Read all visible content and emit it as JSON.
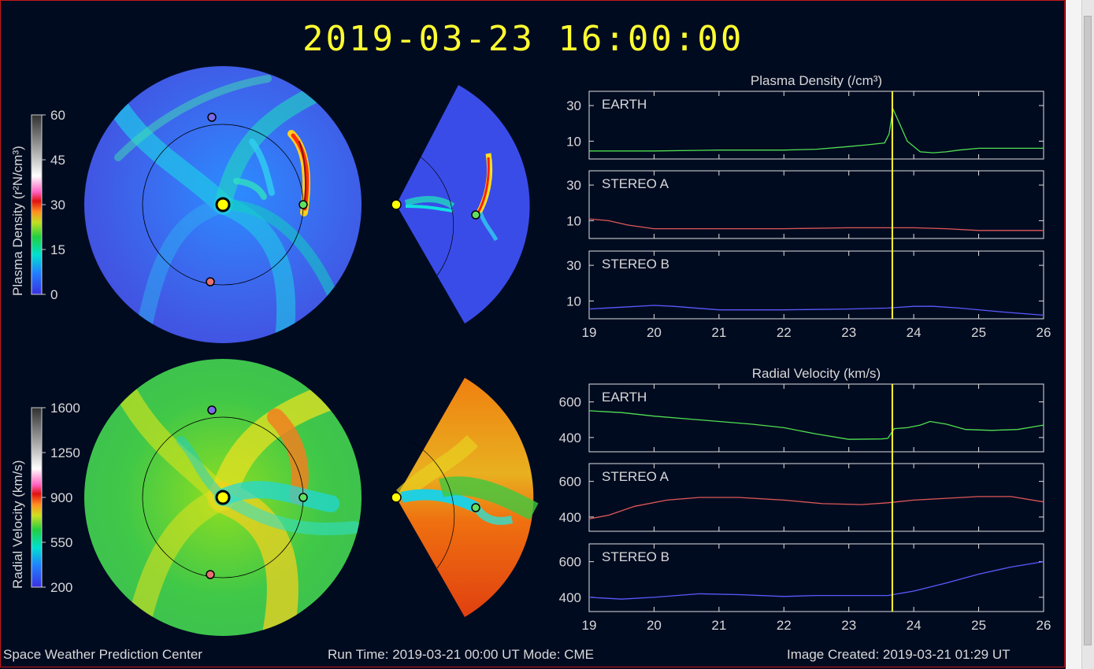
{
  "timestamp": "2019-03-23  16:00:00",
  "footer": {
    "left": "Space Weather Prediction Center",
    "center": "Run Time: 2019-03-21 00:00 UT   Mode: CME",
    "right": "Image Created: 2019-03-21 01:29 UT"
  },
  "colorbars": {
    "density": {
      "label": "Plasma Density (r²N/cm³)",
      "ticks": [
        "60",
        "45",
        "30",
        "15",
        "0"
      ]
    },
    "velocity": {
      "label": "Radial Velocity (km/s)",
      "ticks": [
        "1600",
        "1250",
        "900",
        "550",
        "200"
      ]
    }
  },
  "colors": {
    "earth": "#50e050",
    "stereo_a": "#e05858",
    "stereo_b": "#5a5aff",
    "marker": "#ffff30",
    "sun": "#ffff00"
  },
  "chart_data": [
    {
      "type": "line",
      "title": "Plasma Density (/cm³)",
      "xlim": [
        19,
        26
      ],
      "x_ticks": [
        "19",
        "20",
        "21",
        "22",
        "23",
        "24",
        "25",
        "26"
      ],
      "marker_x": 23.67,
      "panels": [
        {
          "name": "EARTH",
          "ylim": [
            0,
            38
          ],
          "y_ticks": [
            "30",
            "10"
          ],
          "x": [
            19,
            20,
            21,
            22,
            22.5,
            23,
            23.3,
            23.55,
            23.62,
            23.68,
            23.78,
            23.9,
            24.1,
            24.3,
            24.5,
            24.7,
            25,
            25.5,
            26
          ],
          "y": [
            4.5,
            4.5,
            5,
            5,
            5.5,
            7,
            8,
            9,
            14,
            28,
            20,
            10,
            4,
            3.5,
            4,
            5,
            6,
            6,
            6
          ]
        },
        {
          "name": "STEREO A",
          "ylim": [
            0,
            38
          ],
          "y_ticks": [
            "30",
            "10"
          ],
          "x": [
            19,
            19.3,
            19.6,
            20,
            21,
            22,
            23,
            23.5,
            24,
            24.5,
            25,
            26
          ],
          "y": [
            11,
            10,
            7.5,
            5.5,
            5.5,
            5.5,
            6,
            6,
            6,
            5.5,
            4.5,
            4.5
          ]
        },
        {
          "name": "STEREO B",
          "ylim": [
            0,
            38
          ],
          "y_ticks": [
            "30",
            "10"
          ],
          "x": [
            19,
            19.5,
            20,
            20.3,
            21,
            22,
            23,
            23.6,
            24,
            24.3,
            24.7,
            25.3,
            26
          ],
          "y": [
            5.5,
            6.5,
            7.5,
            7,
            5,
            5,
            5.5,
            6,
            7,
            7,
            6,
            4,
            2
          ]
        }
      ]
    },
    {
      "type": "line",
      "title": "Radial Velocity (km/s)",
      "xlim": [
        19,
        26
      ],
      "x_ticks": [
        "19",
        "20",
        "21",
        "22",
        "23",
        "24",
        "25",
        "26"
      ],
      "marker_x": 23.67,
      "panels": [
        {
          "name": "EARTH",
          "ylim": [
            320,
            700
          ],
          "y_ticks": [
            "600",
            "400"
          ],
          "x": [
            19,
            19.5,
            20,
            20.5,
            21,
            21.5,
            22,
            22.5,
            23,
            23.5,
            23.6,
            23.7,
            23.9,
            24.1,
            24.25,
            24.5,
            24.8,
            25.2,
            25.6,
            26
          ],
          "y": [
            550,
            540,
            520,
            505,
            490,
            475,
            455,
            420,
            390,
            392,
            395,
            450,
            455,
            470,
            490,
            475,
            445,
            440,
            445,
            470
          ]
        },
        {
          "name": "STEREO A",
          "ylim": [
            320,
            700
          ],
          "y_ticks": [
            "600",
            "400"
          ],
          "x": [
            19,
            19.3,
            19.7,
            20.2,
            20.7,
            21.3,
            22,
            22.6,
            23.2,
            23.6,
            24,
            24.5,
            25,
            25.5,
            26
          ],
          "y": [
            390,
            410,
            460,
            495,
            510,
            510,
            495,
            475,
            470,
            480,
            495,
            505,
            515,
            515,
            485
          ]
        },
        {
          "name": "STEREO B",
          "ylim": [
            320,
            700
          ],
          "y_ticks": [
            "600",
            "400"
          ],
          "x": [
            19,
            19.5,
            20,
            20.7,
            21.3,
            22,
            22.5,
            23,
            23.6,
            24,
            24.5,
            25,
            25.5,
            26
          ],
          "y": [
            400,
            390,
            400,
            420,
            415,
            405,
            410,
            410,
            410,
            435,
            480,
            530,
            570,
            600
          ]
        }
      ]
    }
  ]
}
